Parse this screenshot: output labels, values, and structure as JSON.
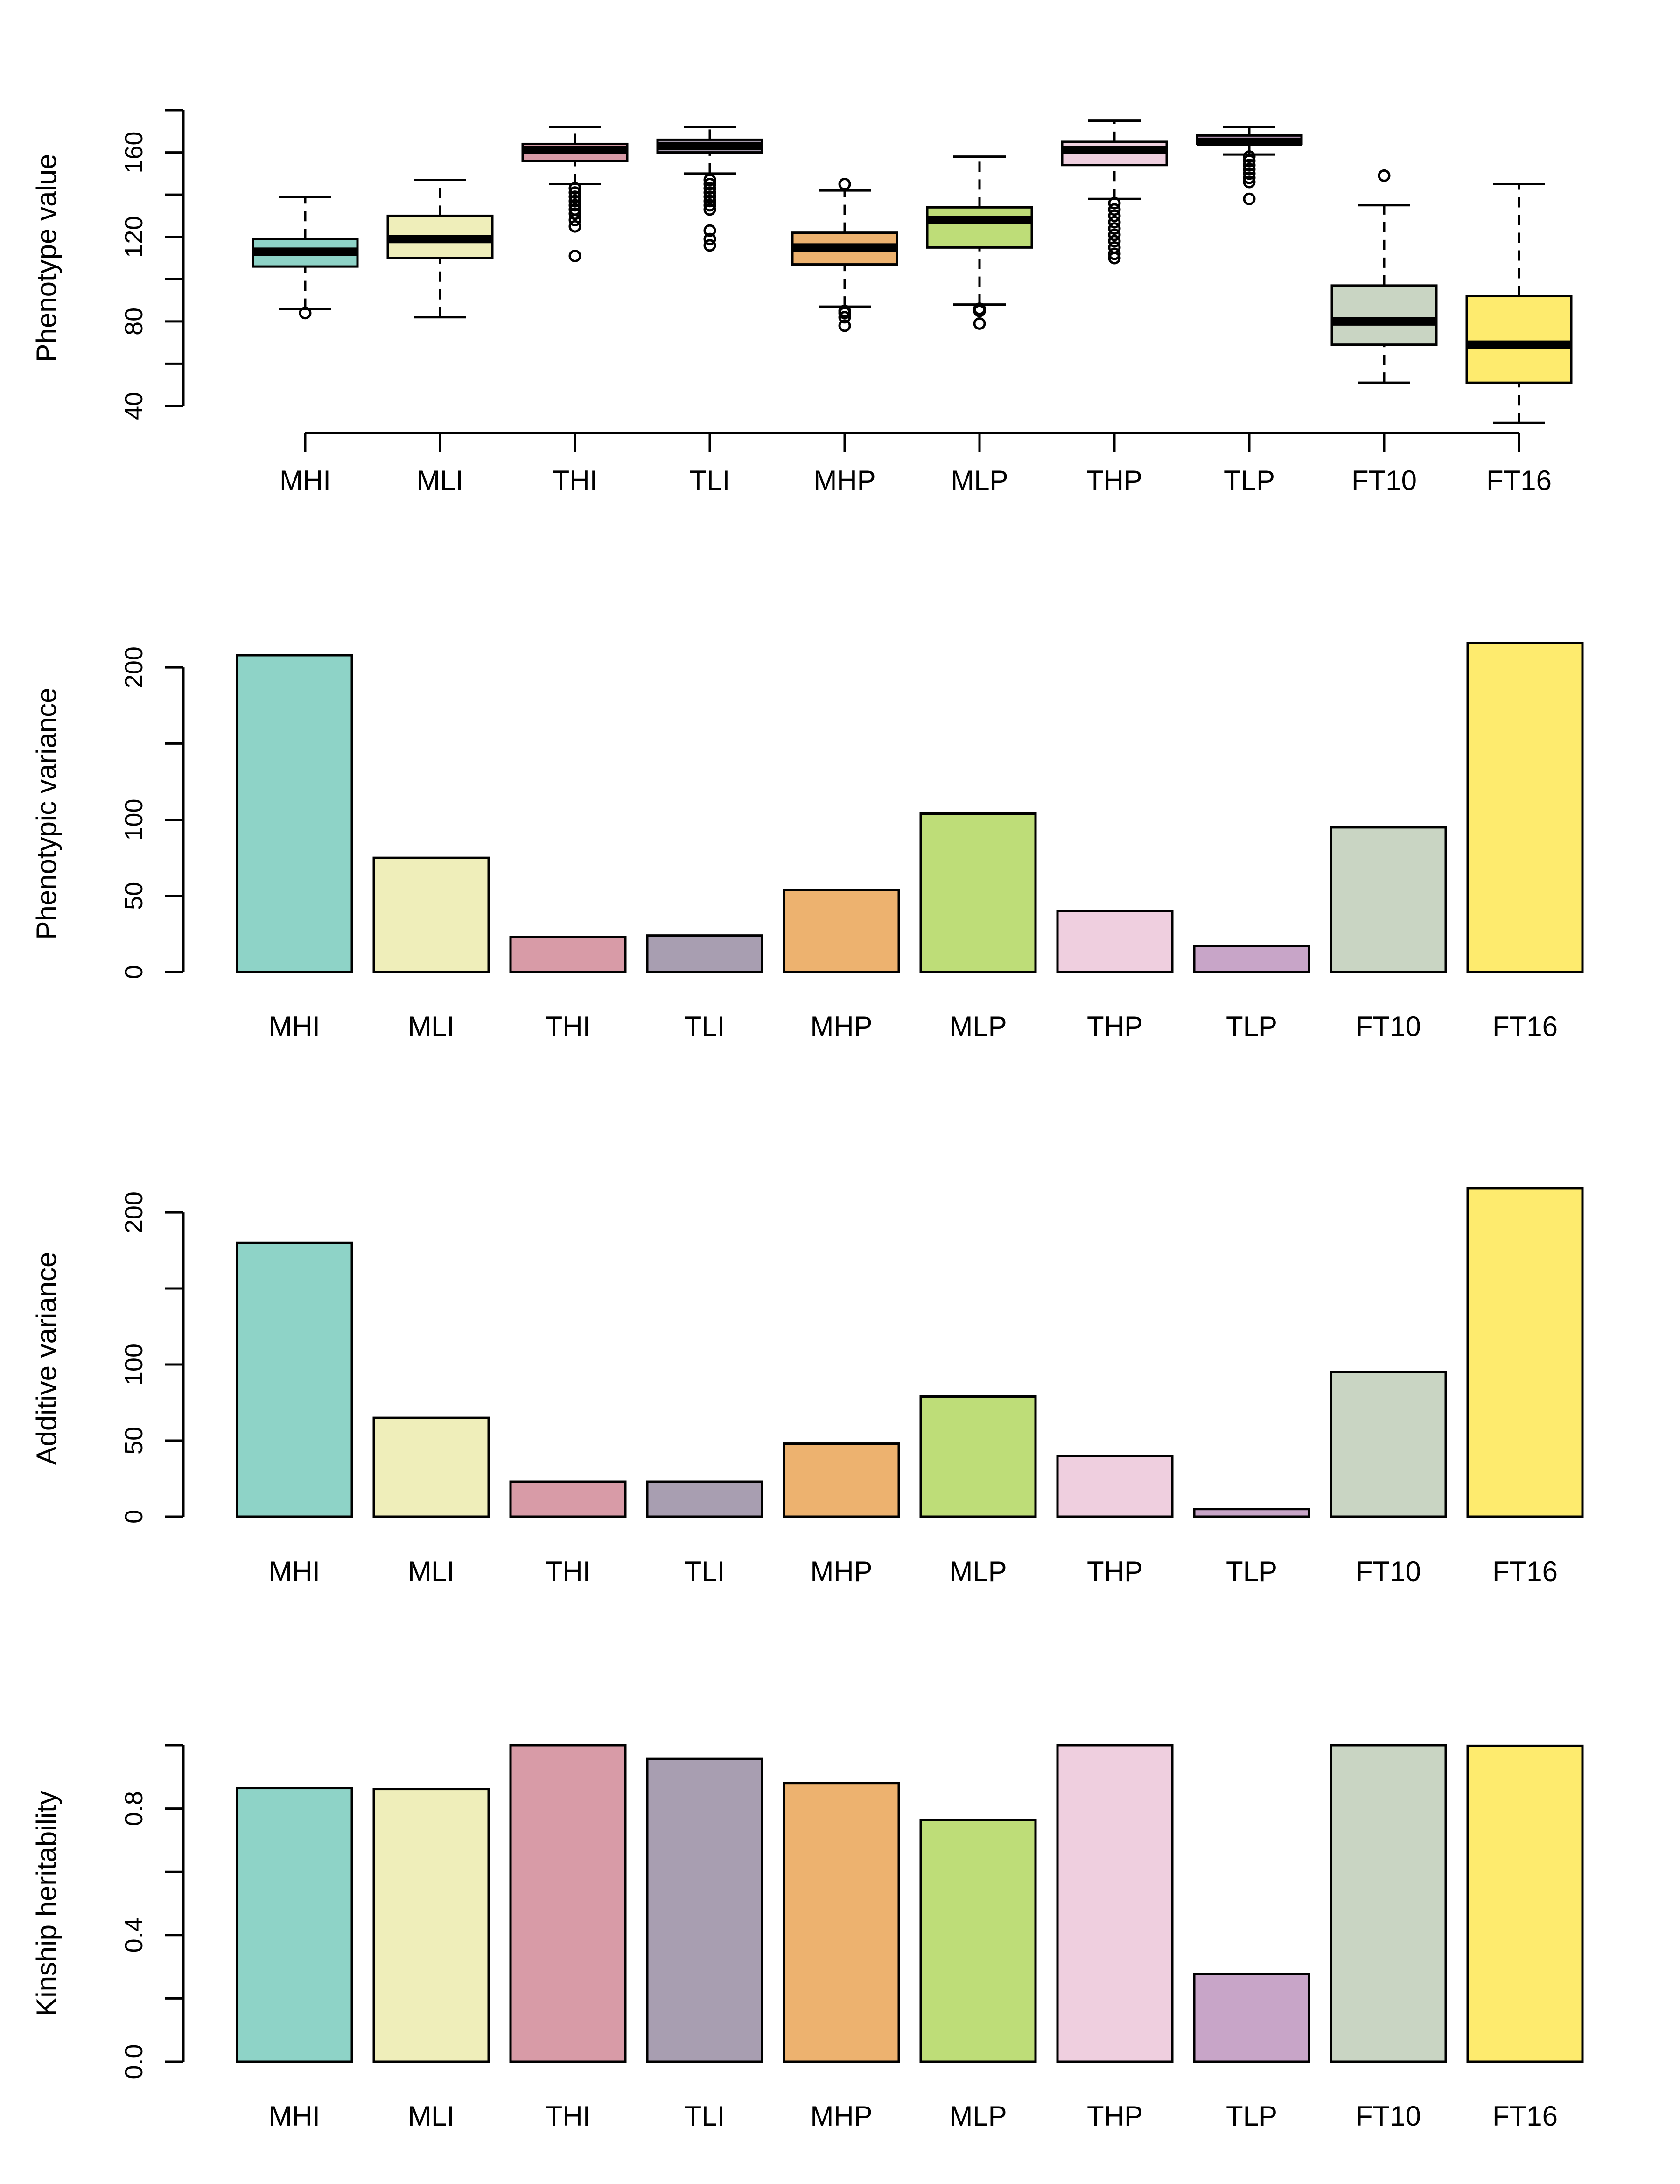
{
  "chart_data": [
    {
      "type": "boxplot",
      "ylabel": "Phenotype value",
      "ylim": [
        40,
        180
      ],
      "yticks": [
        40,
        60,
        80,
        100,
        120,
        140,
        160,
        180
      ],
      "ytick_labels": [
        "40",
        "",
        "80",
        "",
        "120",
        "",
        "160",
        ""
      ],
      "categories": [
        "MHI",
        "MLI",
        "THI",
        "TLI",
        "MHP",
        "MLP",
        "THP",
        "TLP",
        "FT10",
        "FT16"
      ],
      "boxes": [
        {
          "whisker_low": 86,
          "q1": 106,
          "median": 113,
          "q3": 119,
          "whisker_high": 139,
          "outliers": [
            84
          ]
        },
        {
          "whisker_low": 82,
          "q1": 110,
          "median": 119,
          "q3": 130,
          "whisker_high": 147,
          "outliers": []
        },
        {
          "whisker_low": 145,
          "q1": 156,
          "median": 161,
          "q3": 164,
          "whisker_high": 172,
          "outliers": [
            111,
            125,
            128,
            131,
            133,
            135,
            137,
            139,
            141,
            143
          ]
        },
        {
          "whisker_low": 150,
          "q1": 160,
          "median": 163,
          "q3": 166,
          "whisker_high": 172,
          "outliers": [
            116,
            119,
            123,
            133,
            135,
            137,
            139,
            141,
            143,
            145,
            147
          ]
        },
        {
          "whisker_low": 87,
          "q1": 107,
          "median": 115,
          "q3": 122,
          "whisker_high": 142,
          "outliers": [
            78,
            82,
            84,
            85,
            145
          ]
        },
        {
          "whisker_low": 88,
          "q1": 115,
          "median": 128,
          "q3": 134,
          "whisker_high": 158,
          "outliers": [
            79,
            85,
            86
          ]
        },
        {
          "whisker_low": 138,
          "q1": 154,
          "median": 161,
          "q3": 165,
          "whisker_high": 175,
          "outliers": [
            110,
            112,
            115,
            118,
            121,
            124,
            127,
            130,
            133,
            136
          ]
        },
        {
          "whisker_low": 159,
          "q1": 164,
          "median": 165,
          "q3": 168,
          "whisker_high": 172,
          "outliers": [
            138,
            146,
            148,
            150,
            152,
            154,
            156,
            158
          ]
        },
        {
          "whisker_low": 51,
          "q1": 69,
          "median": 80,
          "q3": 97,
          "whisker_high": 135,
          "outliers": [
            149
          ]
        },
        {
          "whisker_low": 32,
          "q1": 51,
          "median": 69,
          "q3": 92,
          "whisker_high": 145,
          "outliers": []
        }
      ]
    },
    {
      "type": "bar",
      "ylabel": "Phenotypic variance",
      "ylim": [
        0,
        208
      ],
      "yticks": [
        0,
        50,
        100,
        150,
        200
      ],
      "ytick_labels": [
        "0",
        "50",
        "100",
        "",
        "200"
      ],
      "categories": [
        "MHI",
        "MLI",
        "THI",
        "TLI",
        "MHP",
        "MLP",
        "THP",
        "TLP",
        "FT10",
        "FT16"
      ],
      "values": [
        208,
        75,
        23,
        24,
        54,
        104,
        40,
        17,
        95,
        216
      ]
    },
    {
      "type": "bar",
      "ylabel": "Additive variance",
      "ylim": [
        0,
        208
      ],
      "yticks": [
        0,
        50,
        100,
        150,
        200
      ],
      "ytick_labels": [
        "0",
        "50",
        "100",
        "",
        "200"
      ],
      "categories": [
        "MHI",
        "MLI",
        "THI",
        "TLI",
        "MHP",
        "MLP",
        "THP",
        "TLP",
        "FT10",
        "FT16"
      ],
      "values": [
        180,
        65,
        23,
        23,
        48,
        79,
        40,
        5,
        95,
        216
      ]
    },
    {
      "type": "bar",
      "ylabel": "Kinship heritability",
      "ylim": [
        0,
        1
      ],
      "yticks": [
        0,
        0.2,
        0.4,
        0.6,
        0.8,
        1.0
      ],
      "ytick_labels": [
        "0.0",
        "",
        "0.4",
        "",
        "0.8",
        ""
      ],
      "categories": [
        "MHI",
        "MLI",
        "THI",
        "TLI",
        "MHP",
        "MLP",
        "THP",
        "TLP",
        "FT10",
        "FT16"
      ],
      "values": [
        0.865,
        0.862,
        1.0,
        0.957,
        0.881,
        0.764,
        1.0,
        0.278,
        1.0,
        0.998
      ]
    }
  ],
  "colors": [
    "#8ED3C7",
    "#EFEEBA",
    "#D89BA7",
    "#A89EB1",
    "#EDB26F",
    "#BEDD78",
    "#EFCFDF",
    "#C8A5C8",
    "#C9D5C3",
    "#FEEB6E"
  ]
}
